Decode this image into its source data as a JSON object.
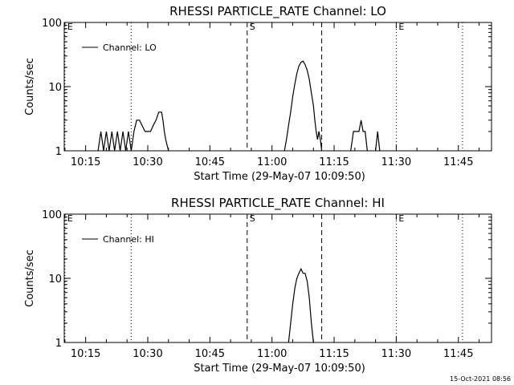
{
  "footer_stamp": "15-Oct-2021 08:56",
  "chart_data": [
    {
      "type": "line",
      "title": "RHESSI PARTICLE_RATE Channel: LO",
      "xlabel": "Start Time (29-May-07 10:09:50)",
      "ylabel": "Counts/sec",
      "yscale": "log",
      "ylim": [
        1,
        100
      ],
      "xlim": [
        "10:09:50",
        "11:53:00"
      ],
      "x_ticks": [
        "10:15",
        "10:30",
        "10:45",
        "11:00",
        "11:15",
        "11:30",
        "11:45"
      ],
      "y_ticks": [
        "1",
        "10",
        "100"
      ],
      "legend": {
        "position": "top-left",
        "entries": [
          "Channel: LO"
        ]
      },
      "markers": [
        {
          "label": "E",
          "time": "10:10",
          "style": "dotted"
        },
        {
          "label": "",
          "time": "10:26",
          "style": "dotted"
        },
        {
          "label": "S",
          "time": "10:54",
          "style": "dashed"
        },
        {
          "label": "",
          "time": "11:12",
          "style": "dashed"
        },
        {
          "label": "E",
          "time": "11:30",
          "style": "dotted"
        },
        {
          "label": "",
          "time": "11:46",
          "style": "dotted"
        }
      ],
      "series": [
        {
          "name": "Channel: LO",
          "segments": [
            {
              "x": [
                "10:18:00",
                "10:18:40",
                "10:19:20",
                "10:20:00",
                "10:20:40",
                "10:21:20",
                "10:22:00",
                "10:22:40",
                "10:23:20",
                "10:24:00",
                "10:24:40",
                "10:25:20",
                "10:26:00",
                "10:26:40"
              ],
              "y": [
                1,
                2,
                1,
                2,
                1,
                2,
                1,
                2,
                1,
                2,
                1,
                2,
                1,
                2
              ]
            },
            {
              "x": [
                "10:26:40",
                "10:27:20",
                "10:28:00",
                "10:29:20",
                "10:30:00",
                "10:30:40",
                "10:31:20",
                "10:32:00",
                "10:32:40",
                "10:33:20",
                "10:33:40",
                "10:34:00",
                "10:34:20",
                "10:35:00"
              ],
              "y": [
                2,
                3,
                3,
                2,
                2,
                2,
                2.5,
                3,
                4,
                4,
                3,
                2,
                1.5,
                1
              ]
            },
            {
              "x": [
                "11:03:00",
                "11:03:30",
                "11:04:00",
                "11:04:30",
                "11:05:00",
                "11:05:30",
                "11:06:00",
                "11:06:30",
                "11:07:00",
                "11:07:30",
                "11:08:00",
                "11:08:30",
                "11:09:00",
                "11:09:30",
                "11:10:00",
                "11:10:20",
                "11:10:40",
                "11:11:00",
                "11:11:20",
                "11:11:40",
                "11:12:00"
              ],
              "y": [
                1,
                1.5,
                2.5,
                4,
                7,
                11,
                16,
                21,
                24,
                25,
                22,
                18,
                13,
                8,
                5,
                3,
                2,
                1.5,
                2,
                1.5,
                1
              ]
            },
            {
              "x": [
                "11:19:00",
                "11:19:40",
                "11:21:00",
                "11:21:30",
                "11:22:00",
                "11:22:30",
                "11:23:00"
              ],
              "y": [
                1,
                2,
                2,
                3,
                2,
                2,
                1
              ]
            },
            {
              "x": [
                "11:25:00",
                "11:25:30",
                "11:26:00"
              ],
              "y": [
                1,
                2,
                1
              ]
            }
          ]
        }
      ]
    },
    {
      "type": "line",
      "title": "RHESSI PARTICLE_RATE Channel: HI",
      "xlabel": "Start Time (29-May-07 10:09:50)",
      "ylabel": "Counts/sec",
      "yscale": "log",
      "ylim": [
        1,
        100
      ],
      "xlim": [
        "10:09:50",
        "11:53:00"
      ],
      "x_ticks": [
        "10:15",
        "10:30",
        "10:45",
        "11:00",
        "11:15",
        "11:30",
        "11:45"
      ],
      "y_ticks": [
        "1",
        "10",
        "100"
      ],
      "legend": {
        "position": "top-left",
        "entries": [
          "Channel: HI"
        ]
      },
      "markers": [
        {
          "label": "E",
          "time": "10:10",
          "style": "dotted"
        },
        {
          "label": "",
          "time": "10:26",
          "style": "dotted"
        },
        {
          "label": "S",
          "time": "10:54",
          "style": "dashed"
        },
        {
          "label": "",
          "time": "11:12",
          "style": "dashed"
        },
        {
          "label": "E",
          "time": "11:30",
          "style": "dotted"
        },
        {
          "label": "",
          "time": "11:46",
          "style": "dotted"
        }
      ],
      "series": [
        {
          "name": "Channel: HI",
          "segments": [
            {
              "x": [
                "11:04:00",
                "11:04:30",
                "11:05:00",
                "11:05:30",
                "11:06:00",
                "11:06:30",
                "11:07:00",
                "11:07:30",
                "11:08:00",
                "11:08:30",
                "11:09:00",
                "11:09:30",
                "11:10:00"
              ],
              "y": [
                1,
                2,
                4,
                7,
                10,
                12,
                14,
                12,
                12,
                9,
                5,
                2,
                1
              ]
            }
          ]
        }
      ]
    }
  ]
}
